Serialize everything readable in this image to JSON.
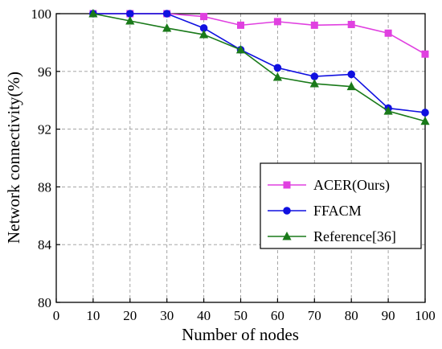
{
  "chart_data": {
    "type": "line",
    "xlabel": "Number of nodes",
    "ylabel": "Network connectivity(%)",
    "xlim": [
      0,
      100
    ],
    "ylim": [
      80,
      100
    ],
    "x_ticks": [
      0,
      10,
      20,
      30,
      40,
      50,
      60,
      70,
      80,
      90,
      100
    ],
    "y_ticks": [
      80,
      84,
      88,
      92,
      96,
      100
    ],
    "grid": true,
    "legend_position": "lower-right",
    "x": [
      10,
      20,
      30,
      40,
      50,
      60,
      70,
      80,
      90,
      100
    ],
    "series": [
      {
        "name": "ACER(Ours)",
        "color": "#e040e0",
        "marker": "square",
        "values": [
          100,
          100,
          100,
          99.8,
          99.2,
          99.45,
          99.2,
          99.25,
          98.65,
          97.2
        ]
      },
      {
        "name": "FFACM",
        "color": "#1010e0",
        "marker": "circle",
        "values": [
          100,
          100,
          100,
          99.0,
          97.5,
          96.25,
          95.65,
          95.8,
          93.45,
          93.15
        ]
      },
      {
        "name": "Reference[36]",
        "color": "#1a7a1a",
        "marker": "triangle",
        "values": [
          100,
          99.5,
          99.0,
          98.55,
          97.5,
          95.6,
          95.15,
          94.95,
          93.25,
          92.55
        ]
      }
    ]
  }
}
